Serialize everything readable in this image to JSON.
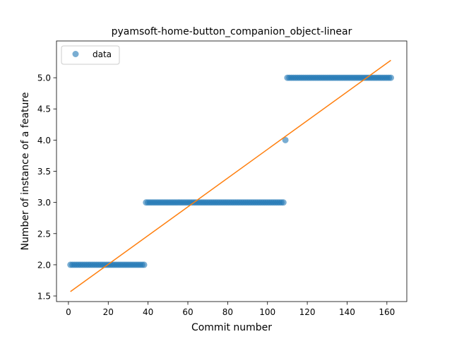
{
  "chart_data": {
    "type": "scatter",
    "title": "pyamsoft-home-button_companion_object-linear",
    "xlabel": "Commit number",
    "ylabel": "Number of instance of a feature",
    "xlim": [
      -6,
      170
    ],
    "ylim": [
      1.41,
      5.59
    ],
    "xticks": [
      0,
      20,
      40,
      60,
      80,
      100,
      120,
      140,
      160
    ],
    "yticks": [
      1.5,
      2.0,
      2.5,
      3.0,
      3.5,
      4.0,
      4.5,
      5.0
    ],
    "xtick_labels": [
      "0",
      "20",
      "40",
      "60",
      "80",
      "100",
      "120",
      "140",
      "160"
    ],
    "ytick_labels": [
      "1.5",
      "2.0",
      "2.5",
      "3.0",
      "3.5",
      "4.0",
      "4.5",
      "5.0"
    ],
    "grid": false,
    "legend": {
      "position": "upper-left",
      "entries": [
        "data"
      ]
    },
    "series": [
      {
        "name": "data",
        "kind": "points",
        "color": "#1f77b4",
        "segments": [
          {
            "x_from": 1,
            "x_to": 38,
            "y": 2.0
          },
          {
            "x_from": 39,
            "x_to": 108,
            "y": 3.0
          },
          {
            "x_from": 109,
            "x_to": 109,
            "y": 4.0
          },
          {
            "x_from": 110,
            "x_to": 162,
            "y": 5.0
          }
        ]
      },
      {
        "kind": "line",
        "color": "#ff7f0e",
        "x": [
          1,
          162
        ],
        "y": [
          1.57,
          5.28
        ]
      }
    ]
  }
}
